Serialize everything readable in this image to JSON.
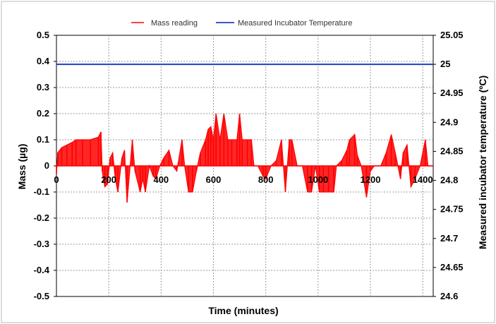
{
  "chart_data": {
    "type": "line",
    "xlabel": "Time (minutes)",
    "ylabel_left": "Mass (µg)",
    "ylabel_right": "Measured incubator temperature (ºC)",
    "xlim": [
      0,
      1440
    ],
    "ylim_left": [
      -0.5,
      0.5
    ],
    "ylim_right": [
      24.6,
      25.05
    ],
    "x_ticks": [
      0,
      200,
      400,
      600,
      800,
      1000,
      1200,
      1400
    ],
    "y_ticks_left": [
      "0.5",
      "0.4",
      "0.3",
      "0.2",
      "0.1",
      "0",
      "-0.1",
      "-0.2",
      "-0.3",
      "-0.4",
      "-0.5"
    ],
    "y_ticks_right": [
      "25.05",
      "25",
      "24.95",
      "24.9",
      "24.85",
      "24.8",
      "24.75",
      "24.7",
      "24.65",
      "24.6"
    ],
    "grid": true,
    "legend_position": "top-center",
    "colors": {
      "mass": "#ff0000",
      "temperature": "#1f3fbf"
    },
    "series": [
      {
        "name": "Mass reading",
        "axis": "left",
        "points": [
          [
            0,
            -0.03
          ],
          [
            5,
            0.05
          ],
          [
            20,
            0.07
          ],
          [
            40,
            0.08
          ],
          [
            60,
            0.09
          ],
          [
            75,
            0.1
          ],
          [
            100,
            0.1
          ],
          [
            130,
            0.1
          ],
          [
            160,
            0.11
          ],
          [
            170,
            0.13
          ],
          [
            175,
            -0.02
          ],
          [
            185,
            -0.08
          ],
          [
            195,
            -0.07
          ],
          [
            205,
            0.03
          ],
          [
            215,
            0.05
          ],
          [
            225,
            -0.05
          ],
          [
            235,
            -0.1
          ],
          [
            250,
            0.03
          ],
          [
            260,
            0.06
          ],
          [
            270,
            -0.14
          ],
          [
            290,
            0.1
          ],
          [
            300,
            -0.02
          ],
          [
            320,
            -0.1
          ],
          [
            330,
            -0.05
          ],
          [
            340,
            -0.1
          ],
          [
            355,
            0.0
          ],
          [
            370,
            -0.04
          ],
          [
            380,
            -0.05
          ],
          [
            395,
            0.0
          ],
          [
            410,
            0.03
          ],
          [
            430,
            0.06
          ],
          [
            445,
            0.0
          ],
          [
            460,
            -0.02
          ],
          [
            480,
            0.1
          ],
          [
            490,
            0.0
          ],
          [
            505,
            -0.1
          ],
          [
            520,
            -0.1
          ],
          [
            535,
            -0.02
          ],
          [
            550,
            0.05
          ],
          [
            570,
            0.1
          ],
          [
            580,
            0.14
          ],
          [
            590,
            0.15
          ],
          [
            600,
            0.1
          ],
          [
            610,
            0.2
          ],
          [
            625,
            0.1
          ],
          [
            640,
            0.2
          ],
          [
            655,
            0.1
          ],
          [
            670,
            0.1
          ],
          [
            690,
            0.1
          ],
          [
            700,
            0.2
          ],
          [
            710,
            0.1
          ],
          [
            730,
            0.1
          ],
          [
            745,
            0.1
          ],
          [
            755,
            0.0
          ],
          [
            770,
            0.0
          ],
          [
            790,
            -0.04
          ],
          [
            800,
            -0.05
          ],
          [
            820,
            0.0
          ],
          [
            840,
            0.02
          ],
          [
            860,
            0.1
          ],
          [
            875,
            -0.1
          ],
          [
            890,
            0.1
          ],
          [
            900,
            0.1
          ],
          [
            920,
            0.0
          ],
          [
            940,
            0.0
          ],
          [
            960,
            -0.1
          ],
          [
            975,
            -0.1
          ],
          [
            990,
            0.0
          ],
          [
            1005,
            -0.1
          ],
          [
            1020,
            -0.1
          ],
          [
            1040,
            -0.1
          ],
          [
            1060,
            -0.1
          ],
          [
            1070,
            0.0
          ],
          [
            1090,
            0.02
          ],
          [
            1110,
            0.06
          ],
          [
            1120,
            0.1
          ],
          [
            1140,
            0.12
          ],
          [
            1150,
            0.04
          ],
          [
            1165,
            0.0
          ],
          [
            1185,
            -0.12
          ],
          [
            1200,
            -0.02
          ],
          [
            1215,
            0.0
          ],
          [
            1240,
            0.0
          ],
          [
            1260,
            0.05
          ],
          [
            1280,
            0.12
          ],
          [
            1295,
            0.05
          ],
          [
            1305,
            0.0
          ],
          [
            1315,
            -0.05
          ],
          [
            1325,
            0.05
          ],
          [
            1340,
            0.08
          ],
          [
            1355,
            -0.08
          ],
          [
            1370,
            -0.05
          ],
          [
            1390,
            0.0
          ],
          [
            1410,
            0.1
          ],
          [
            1420,
            0.0
          ],
          [
            1440,
            0.0
          ]
        ]
      },
      {
        "name": "Measured Incubator Temperature",
        "axis": "right",
        "points": [
          [
            0,
            25.0
          ],
          [
            1440,
            25.0
          ]
        ]
      }
    ]
  }
}
